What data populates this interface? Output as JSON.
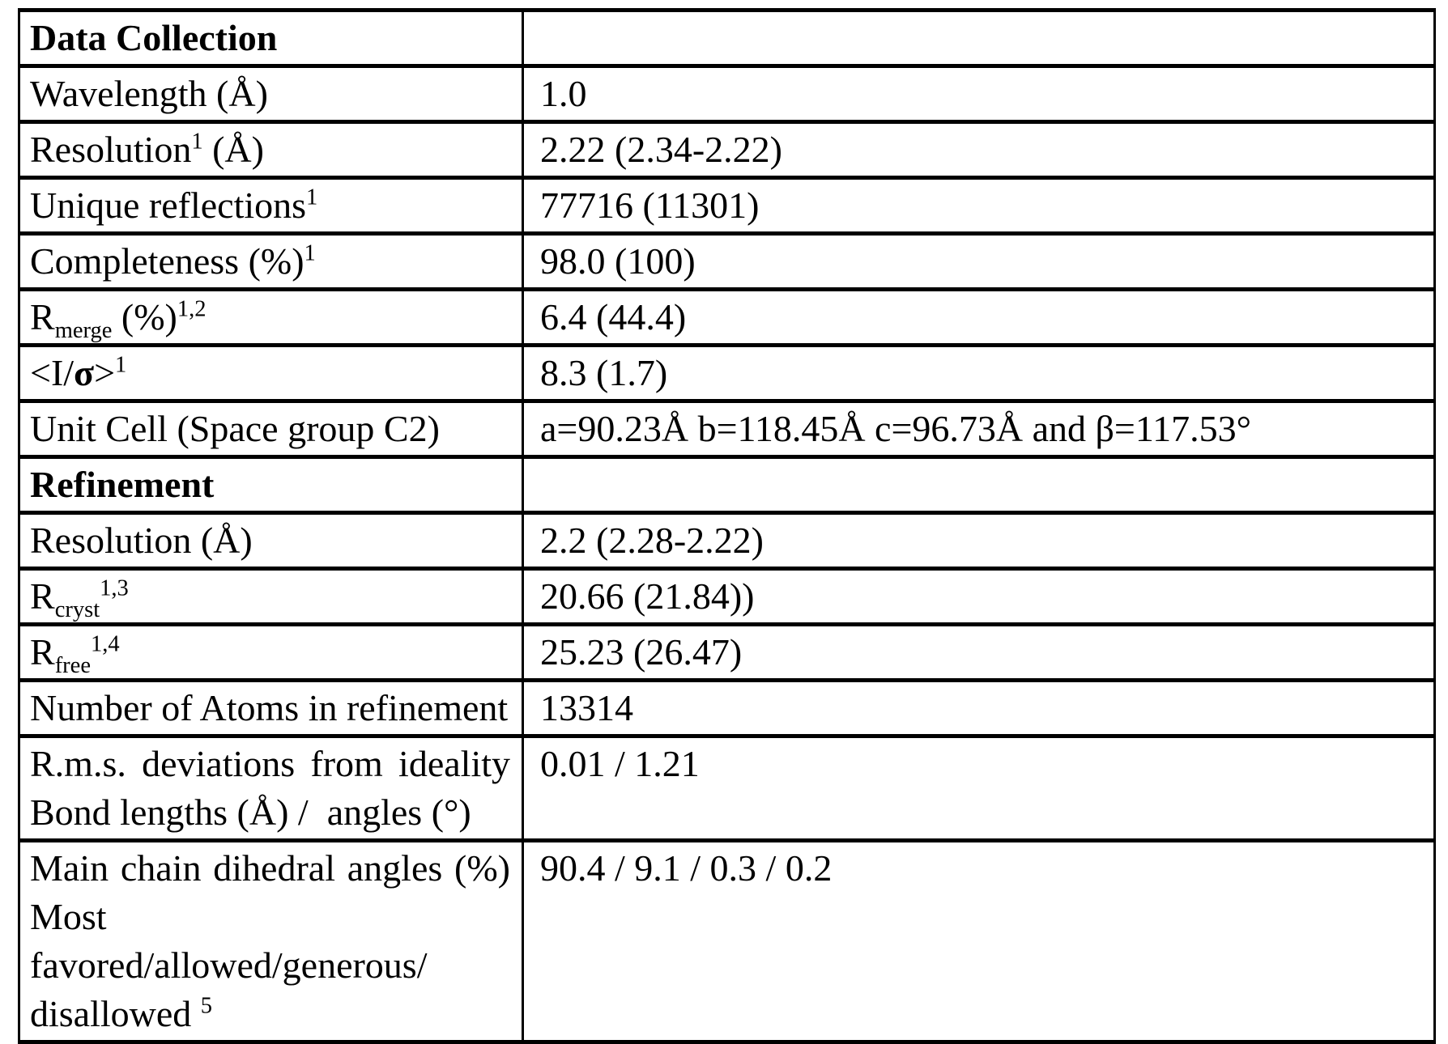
{
  "colors": {
    "border": "#000000",
    "text": "#000000",
    "background": "#ffffff"
  },
  "table": {
    "name": "crystallographic-data-collection-and-refinement-statistics",
    "rows": [
      {
        "section": true,
        "lines": [
          {
            "just": false,
            "segs": [
              {
                "t": "Data Collection"
              }
            ]
          }
        ],
        "value": ""
      },
      {
        "section": false,
        "lines": [
          {
            "just": false,
            "segs": [
              {
                "t": "Wavelength (Å)"
              }
            ]
          }
        ],
        "value": "1.0"
      },
      {
        "section": false,
        "lines": [
          {
            "just": false,
            "segs": [
              {
                "t": "Resolution"
              },
              {
                "t": "1",
                "v": "sup"
              },
              {
                "t": " (Å)"
              }
            ]
          }
        ],
        "value": "2.22 (2.34-2.22)"
      },
      {
        "section": false,
        "lines": [
          {
            "just": false,
            "segs": [
              {
                "t": "Unique reflections"
              },
              {
                "t": "1",
                "v": "sup"
              }
            ]
          }
        ],
        "value": "77716 (11301)"
      },
      {
        "section": false,
        "lines": [
          {
            "just": false,
            "segs": [
              {
                "t": "Completeness (%)"
              },
              {
                "t": "1",
                "v": "sup"
              }
            ]
          }
        ],
        "value": "98.0 (100)"
      },
      {
        "section": false,
        "lines": [
          {
            "just": false,
            "segs": [
              {
                "t": "R"
              },
              {
                "t": "merge",
                "v": "sub"
              },
              {
                "t": " (%)"
              },
              {
                "t": "1,2",
                "v": "sup"
              }
            ]
          }
        ],
        "value": "6.4 (44.4)"
      },
      {
        "section": false,
        "lines": [
          {
            "just": false,
            "segs": [
              {
                "t": "<I/"
              },
              {
                "t": "σ",
                "v": "bold"
              },
              {
                "t": ">"
              },
              {
                "t": "1",
                "v": "sup"
              }
            ]
          }
        ],
        "value": "8.3 (1.7)"
      },
      {
        "section": false,
        "lines": [
          {
            "just": false,
            "segs": [
              {
                "t": "Unit Cell (Space group C2)"
              }
            ]
          }
        ],
        "value": "a=90.23Å b=118.45Å c=96.73Å and β=117.53°"
      },
      {
        "section": true,
        "lines": [
          {
            "just": false,
            "segs": [
              {
                "t": "Refinement"
              }
            ]
          }
        ],
        "value": ""
      },
      {
        "section": false,
        "lines": [
          {
            "just": false,
            "segs": [
              {
                "t": "Resolution (Å)"
              }
            ]
          }
        ],
        "value": "2.2 (2.28-2.22)"
      },
      {
        "section": false,
        "lines": [
          {
            "just": false,
            "segs": [
              {
                "t": "R"
              },
              {
                "t": "cryst",
                "v": "sub"
              },
              {
                "t": "1,3",
                "v": "sup"
              }
            ]
          }
        ],
        "value": "20.66 (21.84))"
      },
      {
        "section": false,
        "lines": [
          {
            "just": false,
            "segs": [
              {
                "t": "R"
              },
              {
                "t": "free",
                "v": "sub"
              },
              {
                "t": "1,4",
                "v": "sup"
              }
            ]
          }
        ],
        "value": "25.23 (26.47)"
      },
      {
        "section": false,
        "lines": [
          {
            "just": false,
            "segs": [
              {
                "t": "Number of Atoms in refinement"
              }
            ]
          }
        ],
        "value": "13314"
      },
      {
        "section": false,
        "lines": [
          {
            "just": true,
            "segs": [
              {
                "t": "R.m.s. deviations from ideality"
              }
            ]
          },
          {
            "just": false,
            "segs": [
              {
                "t": "Bond lengths (Å) /  angles (°)"
              }
            ]
          }
        ],
        "value": "0.01 / 1.21"
      },
      {
        "section": false,
        "lines": [
          {
            "just": true,
            "segs": [
              {
                "t": "Main chain dihedral angles (%)"
              }
            ]
          },
          {
            "just": true,
            "segs": [
              {
                "t": "Most favored/allowed/generous/"
              }
            ]
          },
          {
            "just": false,
            "segs": [
              {
                "t": "disallowed "
              },
              {
                "t": "5",
                "v": "sup"
              }
            ]
          }
        ],
        "value": "90.4 / 9.1 / 0.3 / 0.2"
      }
    ]
  }
}
